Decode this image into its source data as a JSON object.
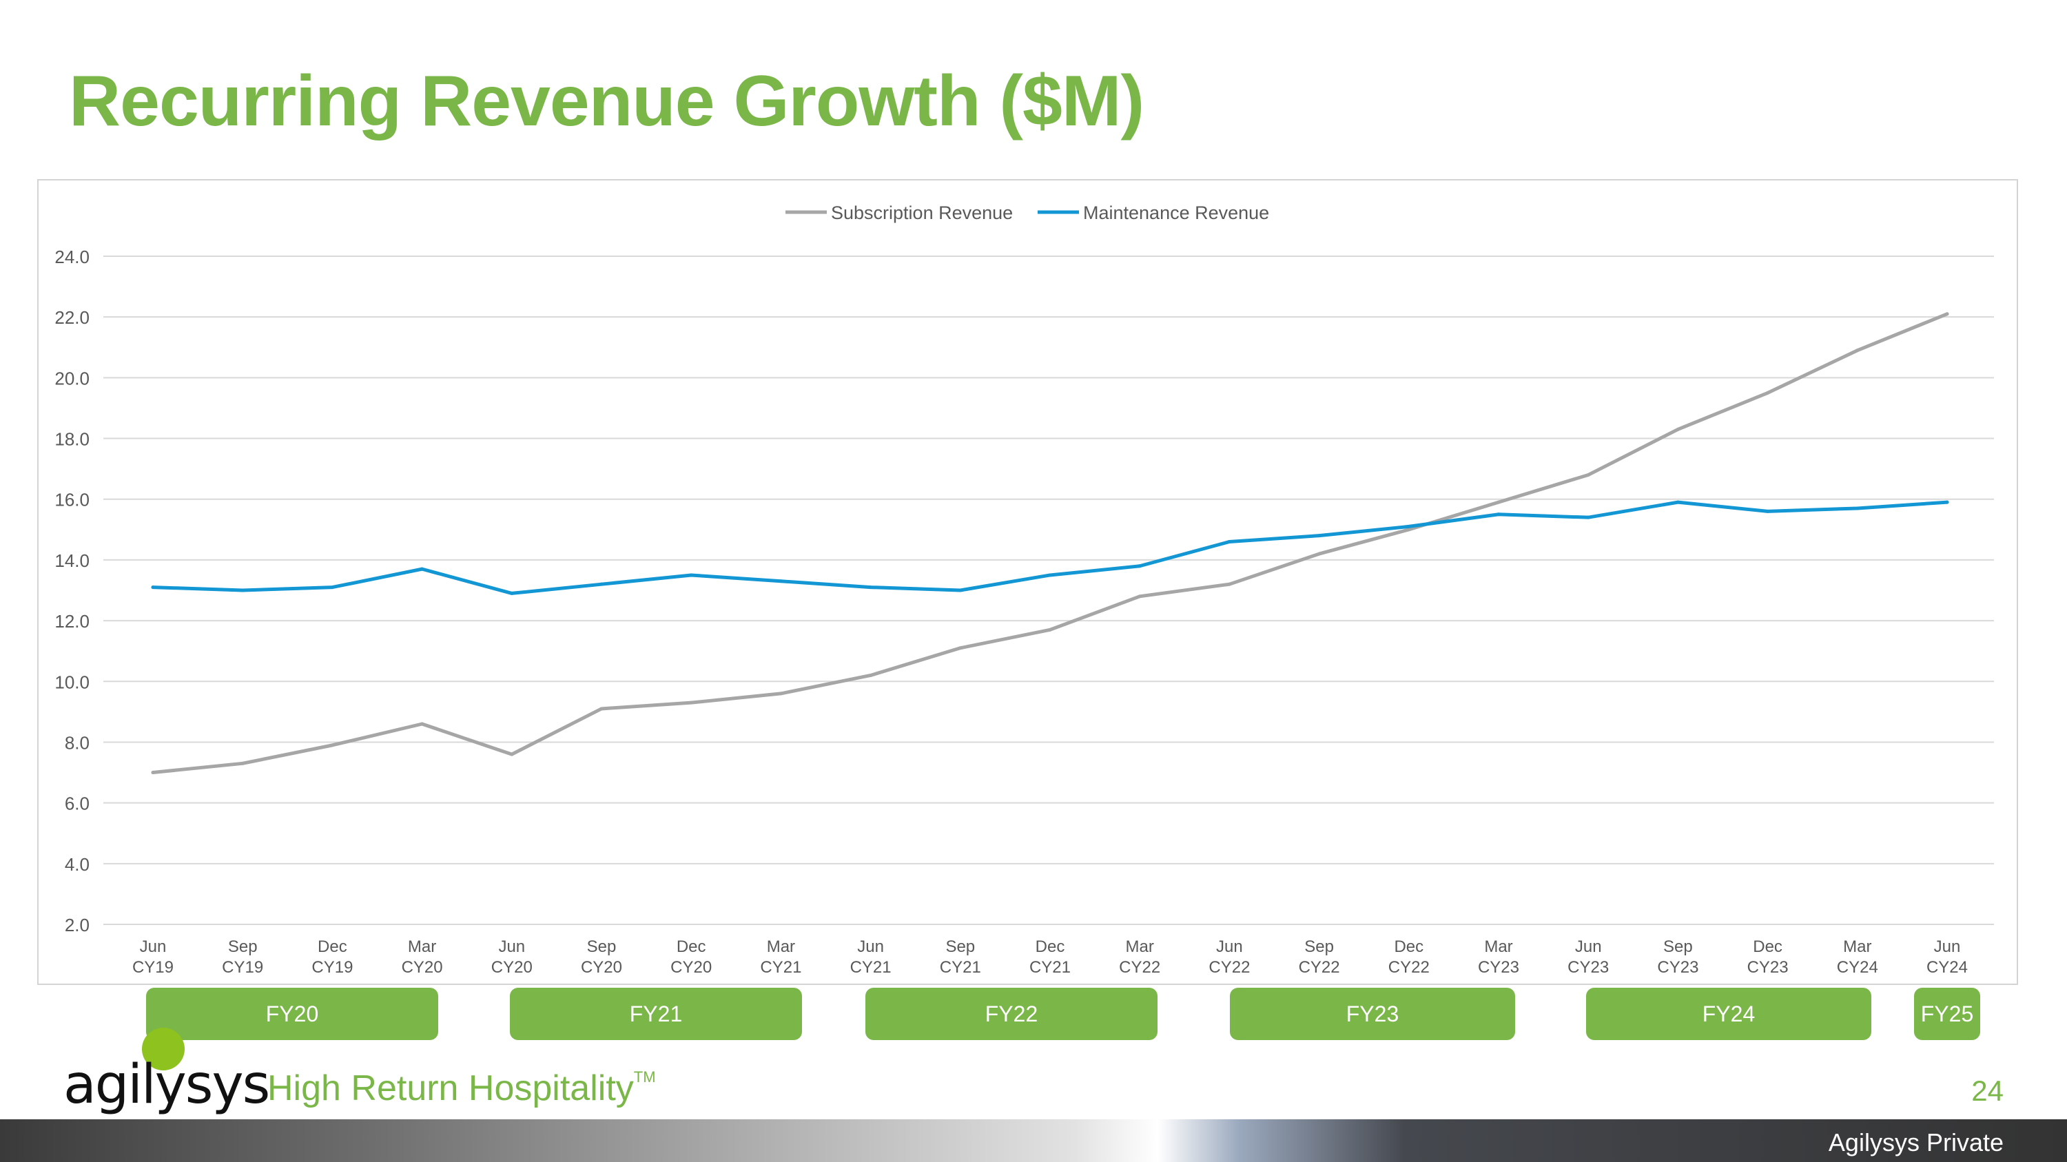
{
  "title": "Recurring Revenue Growth ($M)",
  "chart_data": {
    "type": "line",
    "title": "",
    "xlabel": "",
    "ylabel": "",
    "ylim": [
      2.0,
      24.0
    ],
    "yticks": [
      "2.0",
      "4.0",
      "6.0",
      "8.0",
      "10.0",
      "12.0",
      "14.0",
      "16.0",
      "18.0",
      "20.0",
      "22.0",
      "24.0"
    ],
    "grid": true,
    "legend_position": "top-center",
    "categories": [
      {
        "month": "Jun",
        "year": "CY19"
      },
      {
        "month": "Sep",
        "year": "CY19"
      },
      {
        "month": "Dec",
        "year": "CY19"
      },
      {
        "month": "Mar",
        "year": "CY20"
      },
      {
        "month": "Jun",
        "year": "CY20"
      },
      {
        "month": "Sep",
        "year": "CY20"
      },
      {
        "month": "Dec",
        "year": "CY20"
      },
      {
        "month": "Mar",
        "year": "CY21"
      },
      {
        "month": "Jun",
        "year": "CY21"
      },
      {
        "month": "Sep",
        "year": "CY21"
      },
      {
        "month": "Dec",
        "year": "CY21"
      },
      {
        "month": "Mar",
        "year": "CY22"
      },
      {
        "month": "Jun",
        "year": "CY22"
      },
      {
        "month": "Sep",
        "year": "CY22"
      },
      {
        "month": "Dec",
        "year": "CY22"
      },
      {
        "month": "Mar",
        "year": "CY23"
      },
      {
        "month": "Jun",
        "year": "CY23"
      },
      {
        "month": "Sep",
        "year": "CY23"
      },
      {
        "month": "Dec",
        "year": "CY23"
      },
      {
        "month": "Mar",
        "year": "CY24"
      },
      {
        "month": "Jun",
        "year": "CY24"
      }
    ],
    "series": [
      {
        "name": "Subscription Revenue",
        "color": "#a6a6a6",
        "values": [
          7.0,
          7.3,
          7.9,
          8.6,
          7.6,
          9.1,
          9.3,
          9.6,
          10.2,
          11.1,
          11.7,
          12.8,
          13.2,
          14.2,
          15.0,
          15.9,
          16.8,
          18.3,
          19.5,
          20.9,
          22.1
        ]
      },
      {
        "name": "Maintenance Revenue",
        "color": "#1296d4",
        "values": [
          13.1,
          13.0,
          13.1,
          13.7,
          12.9,
          13.2,
          13.5,
          13.3,
          13.1,
          13.0,
          13.5,
          13.8,
          14.6,
          14.8,
          15.1,
          15.5,
          15.4,
          15.9,
          15.6,
          15.7,
          15.9
        ]
      }
    ]
  },
  "fiscal_years": [
    "FY20",
    "FY21",
    "FY22",
    "FY23",
    "FY24",
    "FY25"
  ],
  "brand": {
    "logo_text": "agilysys",
    "tagline": "High Return Hospitality",
    "trademark": "TM",
    "accent_color": "#7ab648"
  },
  "page_number": "24",
  "footer_label": "Agilysys Private"
}
